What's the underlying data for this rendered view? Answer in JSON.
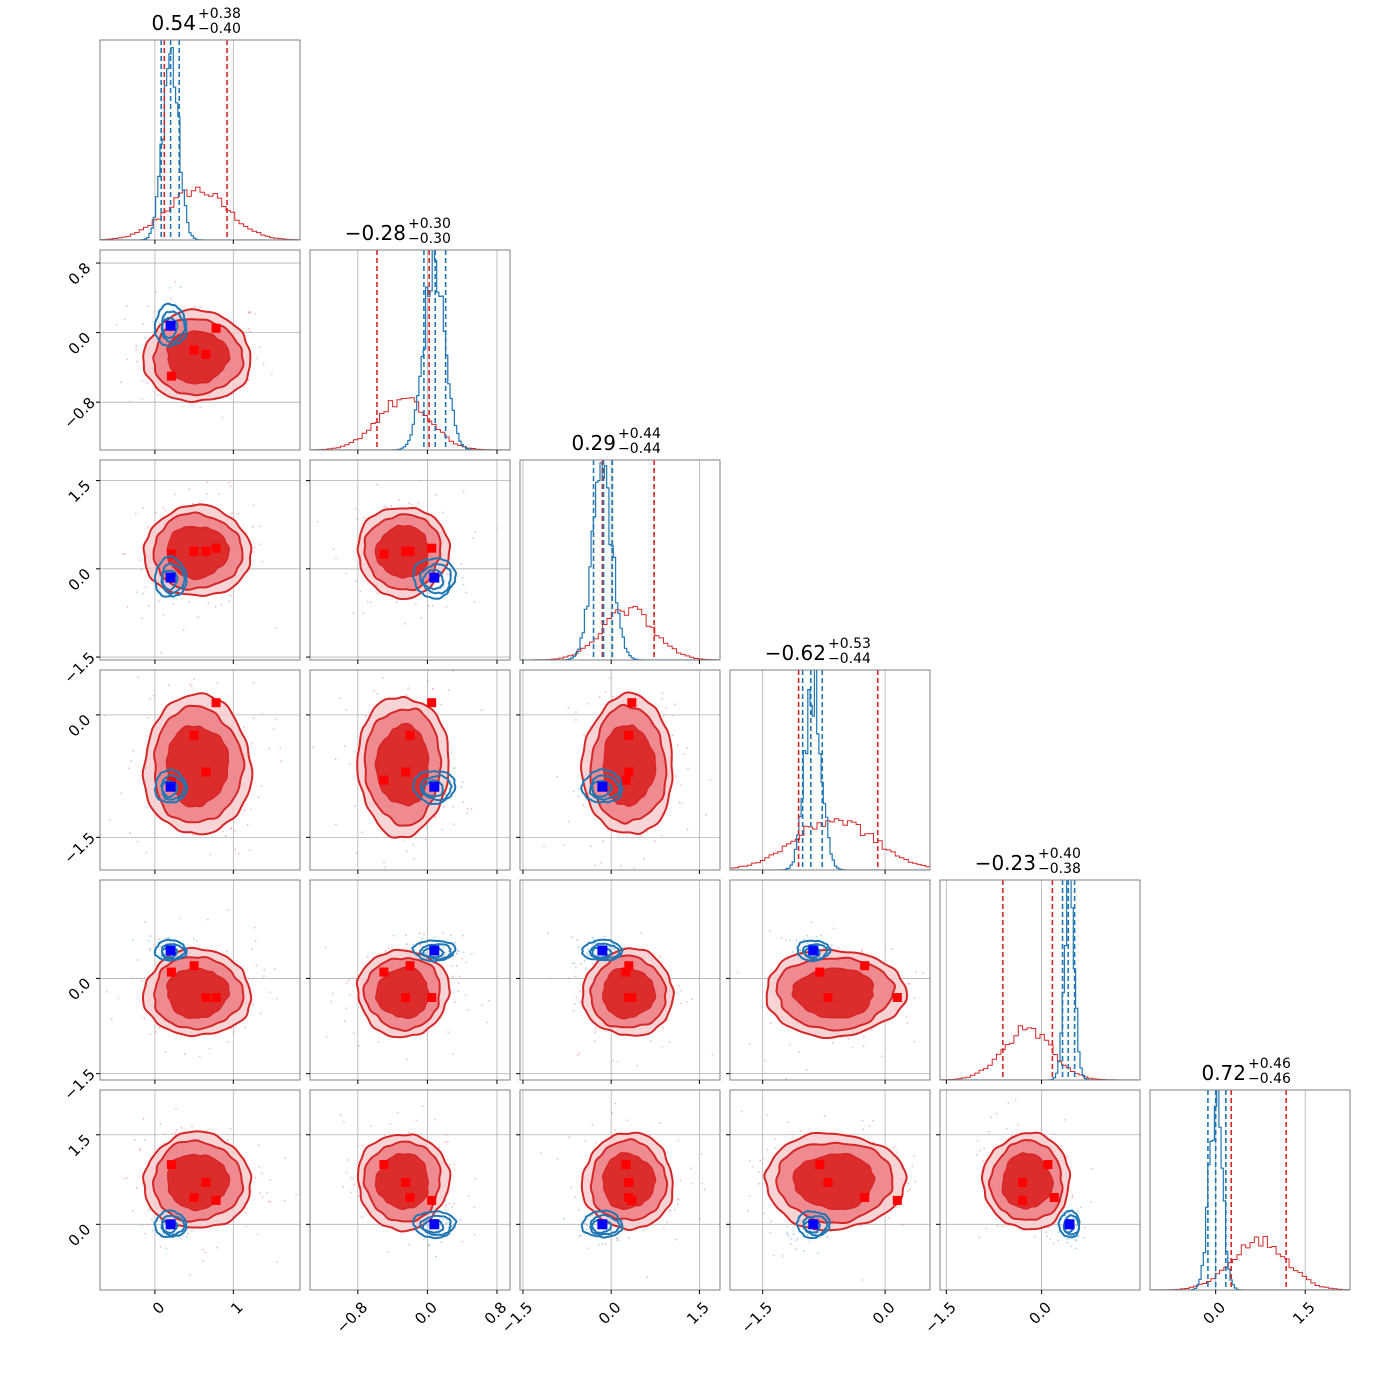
{
  "chart_data": {
    "type": "corner",
    "dimensions": 6,
    "titles": [
      {
        "value": "0.54",
        "plus": "+0.38",
        "minus": "−0.40"
      },
      {
        "value": "−0.28",
        "plus": "+0.30",
        "minus": "−0.30"
      },
      {
        "value": "0.29",
        "plus": "+0.44",
        "minus": "−0.44"
      },
      {
        "value": "−0.62",
        "plus": "+0.53",
        "minus": "−0.44"
      },
      {
        "value": "−0.23",
        "plus": "+0.40",
        "minus": "−0.38"
      },
      {
        "value": "0.72",
        "plus": "+0.46",
        "minus": "−0.46"
      }
    ],
    "axes": [
      {
        "range": [
          -0.7,
          1.85
        ],
        "ticks": [
          0,
          1
        ],
        "tick_labels": [
          "0",
          "1"
        ]
      },
      {
        "range": [
          -1.35,
          0.95
        ],
        "ticks": [
          -0.8,
          0.0,
          0.8
        ],
        "tick_labels": [
          "−0.8",
          "0.0",
          "0.8"
        ]
      },
      {
        "range": [
          -1.55,
          1.85
        ],
        "ticks": [
          -1.5,
          0.0,
          1.5
        ],
        "tick_labels": [
          "−1.5",
          "0.0",
          "1.5"
        ]
      },
      {
        "range": [
          -1.9,
          0.55
        ],
        "ticks": [
          -1.5,
          0.0
        ],
        "tick_labels": [
          "−1.5",
          "0.0"
        ]
      },
      {
        "range": [
          -1.6,
          1.55
        ],
        "ticks": [
          -1.5,
          0.0
        ],
        "tick_labels": [
          "−1.5",
          "0.0"
        ]
      },
      {
        "range": [
          -1.1,
          2.25
        ],
        "ticks": [
          0.0,
          1.5
        ],
        "tick_labels": [
          "0.0",
          "1.5"
        ]
      }
    ],
    "grid": true,
    "series": [
      {
        "color": "#d62728",
        "center": [
          0.54,
          -0.28,
          0.29,
          -0.62,
          -0.23,
          0.72
        ],
        "sigma": [
          0.39,
          0.3,
          0.44,
          0.49,
          0.39,
          0.46
        ],
        "quantile_lines": [
          [
            0.12,
            0.92
          ],
          [
            -0.58,
            0.02
          ],
          [
            -0.15,
            0.73
          ],
          [
            -1.06,
            -0.09
          ],
          [
            -0.61,
            0.17
          ],
          [
            0.26,
            1.18
          ]
        ]
      },
      {
        "color": "#1f77b4",
        "center": [
          0.2,
          0.08,
          -0.15,
          -0.88,
          0.44,
          0.0
        ],
        "sigma": [
          0.1,
          0.12,
          0.17,
          0.1,
          0.08,
          0.11
        ],
        "quantile_lines": [
          [
            0.08,
            0.2,
            0.31
          ],
          [
            -0.04,
            0.09,
            0.21
          ],
          [
            -0.3,
            -0.13,
            0.02
          ],
          [
            -1.01,
            -0.91,
            -0.77
          ],
          [
            0.33,
            0.42,
            0.52
          ],
          [
            -0.13,
            0.0,
            0.17
          ]
        ]
      }
    ],
    "markers": {
      "red": [
        [
          0.21,
          -0.5,
          0.25,
          -0.8,
          0.1,
          1.0
        ],
        [
          0.5,
          -0.2,
          0.3,
          -0.25,
          0.2,
          0.45
        ],
        [
          0.65,
          -0.25,
          0.3,
          -0.7,
          -0.3,
          0.7
        ],
        [
          0.78,
          0.05,
          0.35,
          0.15,
          -0.3,
          0.4
        ]
      ],
      "blue": [
        0.2,
        0.08,
        -0.15,
        -0.88,
        0.44,
        0.0
      ]
    }
  }
}
